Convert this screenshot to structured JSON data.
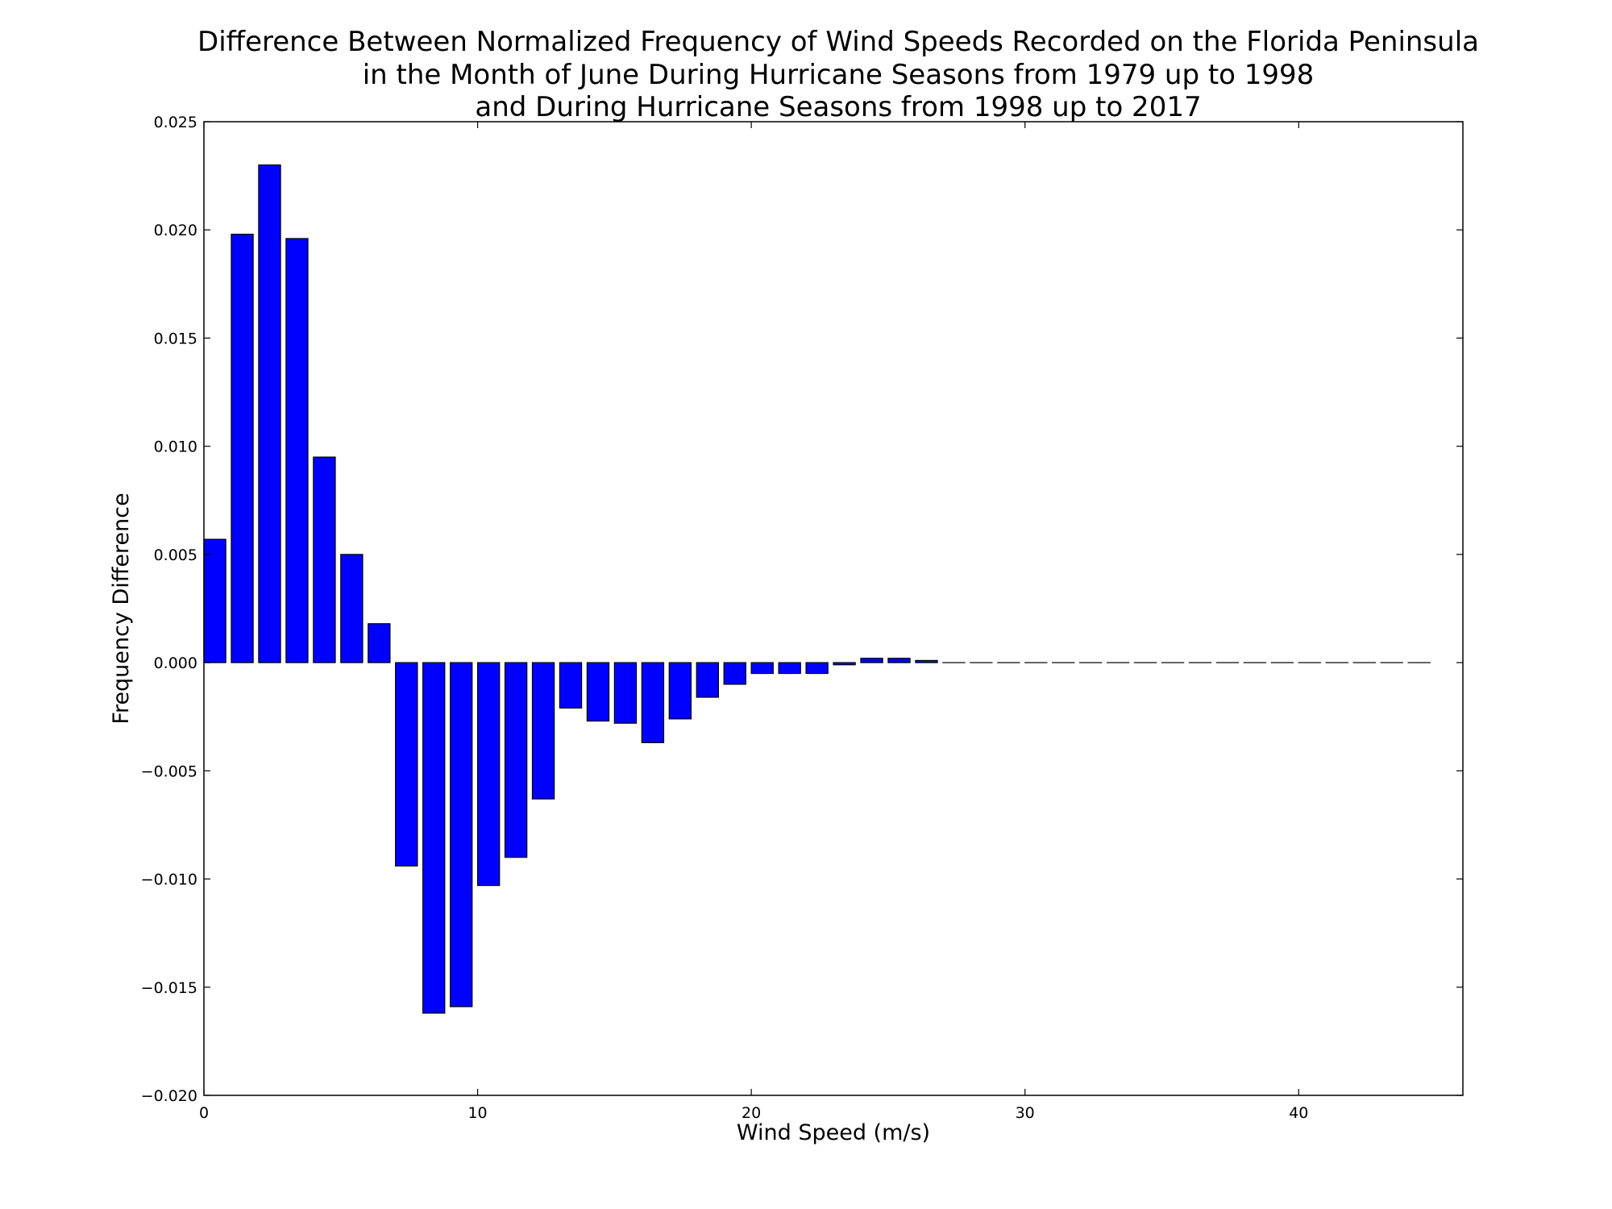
{
  "chart_data": {
    "type": "bar",
    "title_lines": [
      "Difference Between Normalized Frequency of Wind Speeds Recorded on the Florida Peninsula",
      "in the Month of June During Hurricane Seasons from 1979 up to 1998",
      "and During Hurricane Seasons from 1998 up to 2017"
    ],
    "xlabel": "Wind Speed (m/s)",
    "ylabel": "Frequency Difference",
    "xlim": [
      0,
      46
    ],
    "ylim": [
      -0.02,
      0.025
    ],
    "xticks": [
      0,
      10,
      20,
      30,
      40
    ],
    "xtick_labels": [
      "0",
      "10",
      "20",
      "30",
      "40"
    ],
    "yticks": [
      -0.02,
      -0.015,
      -0.01,
      -0.005,
      0.0,
      0.005,
      0.01,
      0.015,
      0.02,
      0.025
    ],
    "ytick_labels": [
      "−0.020",
      "−0.015",
      "−0.010",
      "−0.005",
      "0.000",
      "0.005",
      "0.010",
      "0.015",
      "0.020",
      "0.025"
    ],
    "grid": false,
    "bar_color": "#0000ff",
    "bar_width": 0.8,
    "x": [
      0,
      1,
      2,
      3,
      4,
      5,
      6,
      7,
      8,
      9,
      10,
      11,
      12,
      13,
      14,
      15,
      16,
      17,
      18,
      19,
      20,
      21,
      22,
      23,
      24,
      25,
      26,
      27,
      28,
      29,
      30,
      31,
      32,
      33,
      34,
      35,
      36,
      37,
      38,
      39,
      40,
      41,
      42,
      43,
      44
    ],
    "values": [
      0.0057,
      0.0198,
      0.023,
      0.0196,
      0.0095,
      0.005,
      0.0018,
      -0.0094,
      -0.0162,
      -0.0159,
      -0.0103,
      -0.009,
      -0.0063,
      -0.0021,
      -0.0027,
      -0.0028,
      -0.0037,
      -0.0026,
      -0.0016,
      -0.001,
      -0.0005,
      -0.0005,
      -0.0005,
      -0.0001,
      0.0002,
      0.0002,
      0.0001,
      0.0,
      0.0,
      0.0,
      0.0,
      0.0,
      0.0,
      0.0,
      0.0,
      0.0,
      0.0,
      0.0,
      0.0,
      0.0,
      0.0,
      0.0,
      0.0,
      0.0,
      0.0
    ]
  }
}
